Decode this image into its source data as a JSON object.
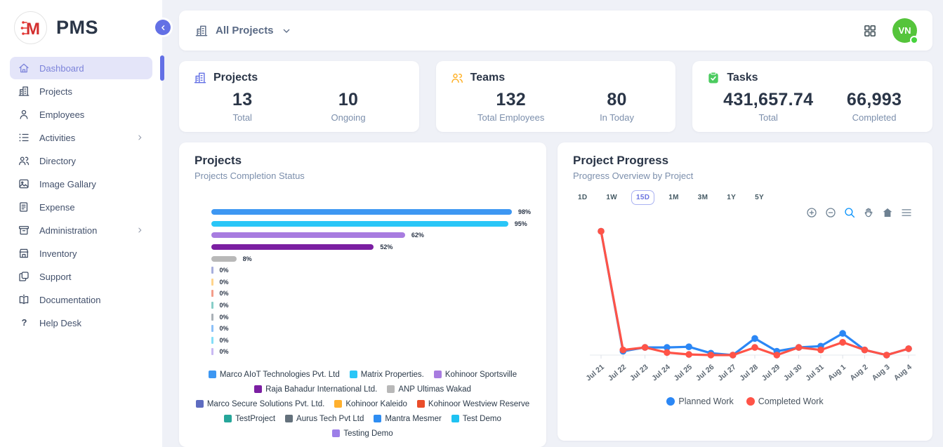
{
  "app": {
    "title": "PMS",
    "logo_letter": "M"
  },
  "sidebar": {
    "items": [
      {
        "label": "Dashboard",
        "icon": "home-icon",
        "active": true
      },
      {
        "label": "Projects",
        "icon": "building-icon"
      },
      {
        "label": "Employees",
        "icon": "person-icon"
      },
      {
        "label": "Activities",
        "icon": "list-icon",
        "expandable": true
      },
      {
        "label": "Directory",
        "icon": "people-icon"
      },
      {
        "label": "Image Gallary",
        "icon": "image-icon"
      },
      {
        "label": "Expense",
        "icon": "receipt-icon"
      },
      {
        "label": "Administration",
        "icon": "archive-icon",
        "expandable": true
      },
      {
        "label": "Inventory",
        "icon": "store-icon"
      },
      {
        "label": "Support",
        "icon": "copy-icon"
      },
      {
        "label": "Documentation",
        "icon": "book-icon"
      },
      {
        "label": "Help Desk",
        "icon": "question-icon"
      }
    ]
  },
  "topbar": {
    "project_selector_label": "All Projects",
    "avatar_initials": "VN"
  },
  "stats": [
    {
      "title": "Projects",
      "icon": "building-icon",
      "accent": "#6370e5",
      "metrics": [
        {
          "value": "13",
          "label": "Total"
        },
        {
          "value": "10",
          "label": "Ongoing"
        }
      ]
    },
    {
      "title": "Teams",
      "icon": "people-icon",
      "accent": "#ffae1f",
      "metrics": [
        {
          "value": "132",
          "label": "Total Employees"
        },
        {
          "value": "80",
          "label": "In Today"
        }
      ]
    },
    {
      "title": "Tasks",
      "icon": "clipboard-check-icon",
      "accent": "#4bcb5f",
      "metrics": [
        {
          "value": "431,657.74",
          "label": "Total"
        },
        {
          "value": "66,993",
          "label": "Completed"
        }
      ]
    }
  ],
  "chart_data": [
    {
      "type": "bar",
      "orientation": "horizontal",
      "title": "Projects",
      "subtitle": "Projects Completion Status",
      "categories": [
        "Marco AIoT Technologies Pvt. Ltd",
        "Matrix Properties.",
        "Kohinoor Sportsville",
        "Raja Bahadur International Ltd.",
        "ANP Ultimas Wakad",
        "Marco Secure Solutions Pvt. Ltd.",
        "Kohinoor Kaleido",
        "Kohinoor Westview Reserve",
        "TestProject",
        "Aurus Tech Pvt Ltd",
        "Mantra Mesmer",
        "Test Demo",
        "Testing Demo"
      ],
      "values": [
        98,
        95,
        62,
        52,
        8,
        0,
        0,
        0,
        0,
        0,
        0,
        0,
        0
      ],
      "value_suffix": "%",
      "colors": [
        "#3d97f2",
        "#29c6f7",
        "#a87ce0",
        "#7b1fa2",
        "#b8b8b8",
        "#5e6cc0",
        "#ffb02e",
        "#ea4d2a",
        "#26a69a",
        "#64717c",
        "#2e8df2",
        "#1fc2f2",
        "#9d7fe8"
      ],
      "xlim": [
        0,
        100
      ],
      "legend_position": "bottom"
    },
    {
      "type": "line",
      "title": "Project Progress",
      "subtitle": "Progress Overview by Project",
      "range_options": [
        "1D",
        "1W",
        "15D",
        "1M",
        "3M",
        "1Y",
        "5Y"
      ],
      "selected_range": "15D",
      "toolbar": [
        "zoom-in-icon",
        "zoom-out-icon",
        "selection-zoom-icon",
        "pan-icon",
        "home-icon",
        "menu-icon"
      ],
      "x": [
        "Jul 21",
        "Jul 22",
        "Jul 23",
        "Jul 24",
        "Jul 25",
        "Jul 26",
        "Jul 27",
        "Jul 28",
        "Jul 29",
        "Jul 30",
        "Jul 31",
        "Aug 1",
        "Aug 2",
        "Aug 3",
        "Aug 4"
      ],
      "series": [
        {
          "name": "Planned Work",
          "color": "#2b87f5",
          "values": [
            97,
            3,
            6,
            6,
            6.5,
            1.5,
            0,
            13,
            3,
            6,
            7,
            17,
            4,
            0,
            5
          ]
        },
        {
          "name": "Completed Work",
          "color": "#ff5347",
          "values": [
            97,
            4,
            6,
            2,
            0.5,
            0,
            0,
            6,
            0,
            6,
            4,
            10,
            4,
            0,
            5
          ]
        }
      ],
      "ylim": [
        0,
        100
      ],
      "grid": false,
      "legend_position": "bottom"
    }
  ]
}
